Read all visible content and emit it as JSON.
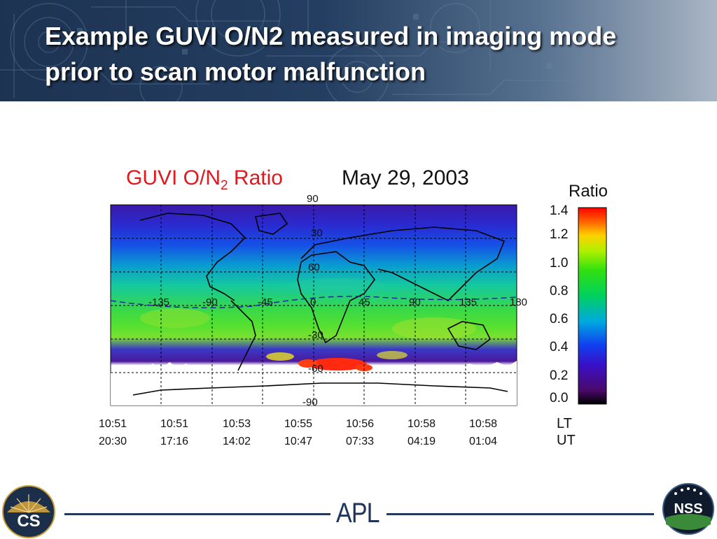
{
  "slide": {
    "title": "Example GUVI O/N2 measured in imaging mode prior to scan motor malfunction"
  },
  "figure": {
    "title_main": "GUVI  O/N",
    "title_sub": "2",
    "title_end": " Ratio",
    "date": "May 29,  2003",
    "lat_labels": [
      "90",
      "60",
      "-30",
      "30",
      "-60",
      "-90"
    ],
    "lon_labels": [
      "-135",
      "-90",
      "-45",
      "0",
      "45",
      "90",
      "135",
      "180"
    ],
    "colorbar_title": "Ratio",
    "colorbar_ticks": [
      "1.4",
      "1.2",
      "1.0",
      "0.8",
      "0.6",
      "0.4",
      "0.2",
      "0.0"
    ],
    "times_lt": [
      "10:51",
      "10:51",
      "10:53",
      "10:55",
      "10:56",
      "10:58",
      "10:58"
    ],
    "times_ut": [
      "20:30",
      "17:16",
      "14:02",
      "10:47",
      "07:33",
      "04:19",
      "01:04"
    ],
    "lt_label": "LT",
    "ut_label": "UT"
  },
  "footer": {
    "left_logo_text": "CS",
    "center_logo_text": "APL",
    "right_logo_text": "NSS"
  }
}
